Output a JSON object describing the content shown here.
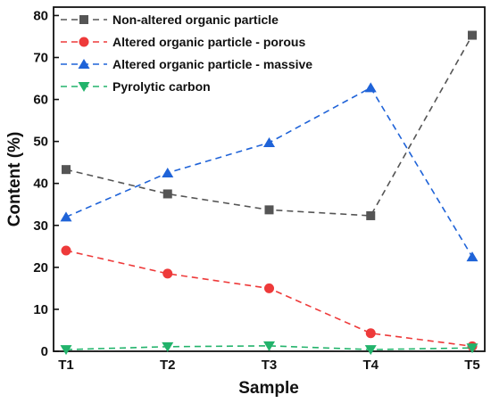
{
  "chart_data": {
    "type": "line",
    "title": "",
    "xlabel": "Sample",
    "ylabel": "Content (%)",
    "categories": [
      "T1",
      "T2",
      "T3",
      "T4",
      "T5"
    ],
    "ylim": [
      0,
      82
    ],
    "yticks": [
      0,
      10,
      20,
      30,
      40,
      50,
      60,
      70,
      80
    ],
    "grid": false,
    "legend_position": "top-left",
    "series": [
      {
        "name": "Non-altered organic particle",
        "values": [
          43.3,
          37.5,
          33.7,
          32.3,
          75.3
        ],
        "color": "#555555",
        "marker": "square"
      },
      {
        "name": "Altered organic particle - porous",
        "values": [
          24.0,
          18.5,
          15.0,
          4.3,
          1.2
        ],
        "color": "#ee3a3a",
        "marker": "circle"
      },
      {
        "name": "Altered organic particle - massive",
        "values": [
          32.0,
          42.5,
          49.7,
          62.8,
          22.5
        ],
        "color": "#1f63d8",
        "marker": "triangle-up"
      },
      {
        "name": "Pyrolytic carbon",
        "values": [
          0.4,
          1.1,
          1.3,
          0.4,
          0.8
        ],
        "color": "#22b36b",
        "marker": "triangle-down"
      }
    ]
  }
}
